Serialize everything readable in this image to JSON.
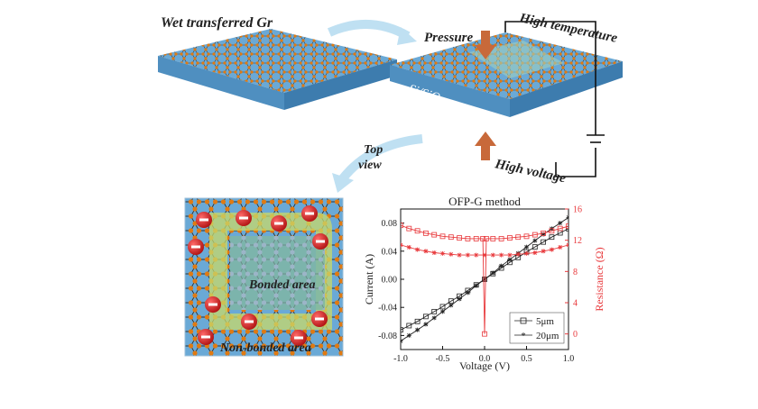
{
  "labels": {
    "wet": "Wet transferred Gr",
    "substrate": "Si/SiO",
    "substrate_sub": "2",
    "pressure": "Pressure",
    "high_temperature": "High temperature",
    "high_voltage": "High voltage",
    "top": "Top",
    "view": "view",
    "bonded": "Bonded area",
    "non_bonded": "Non-bonded area"
  },
  "colors": {
    "substrate_top": "#6aa9d6",
    "substrate_front": "#4f8fc0",
    "atom": "#e07a12",
    "bond_line": "#3a3a3a",
    "bonded_area": "#7fb6a5",
    "non_bonded_band": "#c8d96a",
    "ion_fill": "#d42020",
    "arrow_orange": "#c8693a",
    "curve_arrow": "#bfe0f2",
    "resistance_red": "#e8383b"
  },
  "chart_data": {
    "type": "line",
    "title": "OFP-G method",
    "xlabel": "Voltage (V)",
    "ylabel": "Current (A)",
    "y2label": "Resistance (Ω)",
    "xlim": [
      -1.0,
      1.0
    ],
    "ylim": [
      -0.1,
      0.1
    ],
    "y2lim": [
      -2,
      16
    ],
    "xticks": [
      "-1.0",
      "-0.5",
      "0.0",
      "0.5",
      "1.0"
    ],
    "yticks": [
      "0.08",
      "0.04",
      "0.00",
      "-0.04",
      "-0.08"
    ],
    "y2ticks": [
      "16",
      "12",
      "8",
      "4",
      "0"
    ],
    "legend": [
      "5μm",
      "20μm"
    ],
    "series": [
      {
        "name": "5μm",
        "axis": "current",
        "marker": "square",
        "color": "#222222",
        "x": [
          -1.0,
          -0.9,
          -0.8,
          -0.7,
          -0.6,
          -0.5,
          -0.4,
          -0.3,
          -0.2,
          -0.1,
          0.0,
          0.1,
          0.2,
          0.3,
          0.4,
          0.5,
          0.6,
          0.7,
          0.8,
          0.9,
          1.0
        ],
        "values": [
          -0.072,
          -0.066,
          -0.06,
          -0.053,
          -0.046,
          -0.039,
          -0.031,
          -0.024,
          -0.016,
          -0.008,
          0.0,
          0.008,
          0.016,
          0.024,
          0.031,
          0.039,
          0.046,
          0.053,
          0.06,
          0.066,
          0.072
        ]
      },
      {
        "name": "20μm",
        "axis": "current",
        "marker": "star",
        "color": "#222222",
        "x": [
          -1.0,
          -0.9,
          -0.8,
          -0.7,
          -0.6,
          -0.5,
          -0.4,
          -0.3,
          -0.2,
          -0.1,
          0.0,
          0.1,
          0.2,
          0.3,
          0.4,
          0.5,
          0.6,
          0.7,
          0.8,
          0.9,
          1.0
        ],
        "values": [
          -0.088,
          -0.08,
          -0.072,
          -0.064,
          -0.055,
          -0.046,
          -0.037,
          -0.028,
          -0.019,
          -0.009,
          0.0,
          0.009,
          0.019,
          0.028,
          0.037,
          0.046,
          0.055,
          0.064,
          0.072,
          0.08,
          0.088
        ]
      },
      {
        "name": "5μm",
        "axis": "resistance",
        "marker": "square",
        "color": "#e8383b",
        "x": [
          -1.0,
          -0.9,
          -0.8,
          -0.7,
          -0.6,
          -0.5,
          -0.4,
          -0.3,
          -0.2,
          -0.1,
          -0.02,
          0.0,
          0.02,
          0.1,
          0.2,
          0.3,
          0.4,
          0.5,
          0.6,
          0.7,
          0.8,
          0.9,
          1.0
        ],
        "values": [
          13.9,
          13.5,
          13.2,
          12.9,
          12.7,
          12.5,
          12.4,
          12.3,
          12.2,
          12.2,
          12.2,
          0.0,
          12.2,
          12.2,
          12.2,
          12.3,
          12.4,
          12.5,
          12.7,
          12.9,
          13.2,
          13.5,
          13.8
        ]
      },
      {
        "name": "20μm",
        "axis": "resistance",
        "marker": "star",
        "color": "#e8383b",
        "x": [
          -1.0,
          -0.9,
          -0.8,
          -0.7,
          -0.6,
          -0.5,
          -0.4,
          -0.3,
          -0.2,
          -0.1,
          0.0,
          0.1,
          0.2,
          0.3,
          0.4,
          0.5,
          0.6,
          0.7,
          0.8,
          0.9,
          1.0
        ],
        "values": [
          11.4,
          11.1,
          10.8,
          10.6,
          10.4,
          10.3,
          10.2,
          10.1,
          10.1,
          10.1,
          10.1,
          10.1,
          10.1,
          10.1,
          10.2,
          10.3,
          10.4,
          10.6,
          10.8,
          11.1,
          11.4
        ]
      }
    ]
  }
}
